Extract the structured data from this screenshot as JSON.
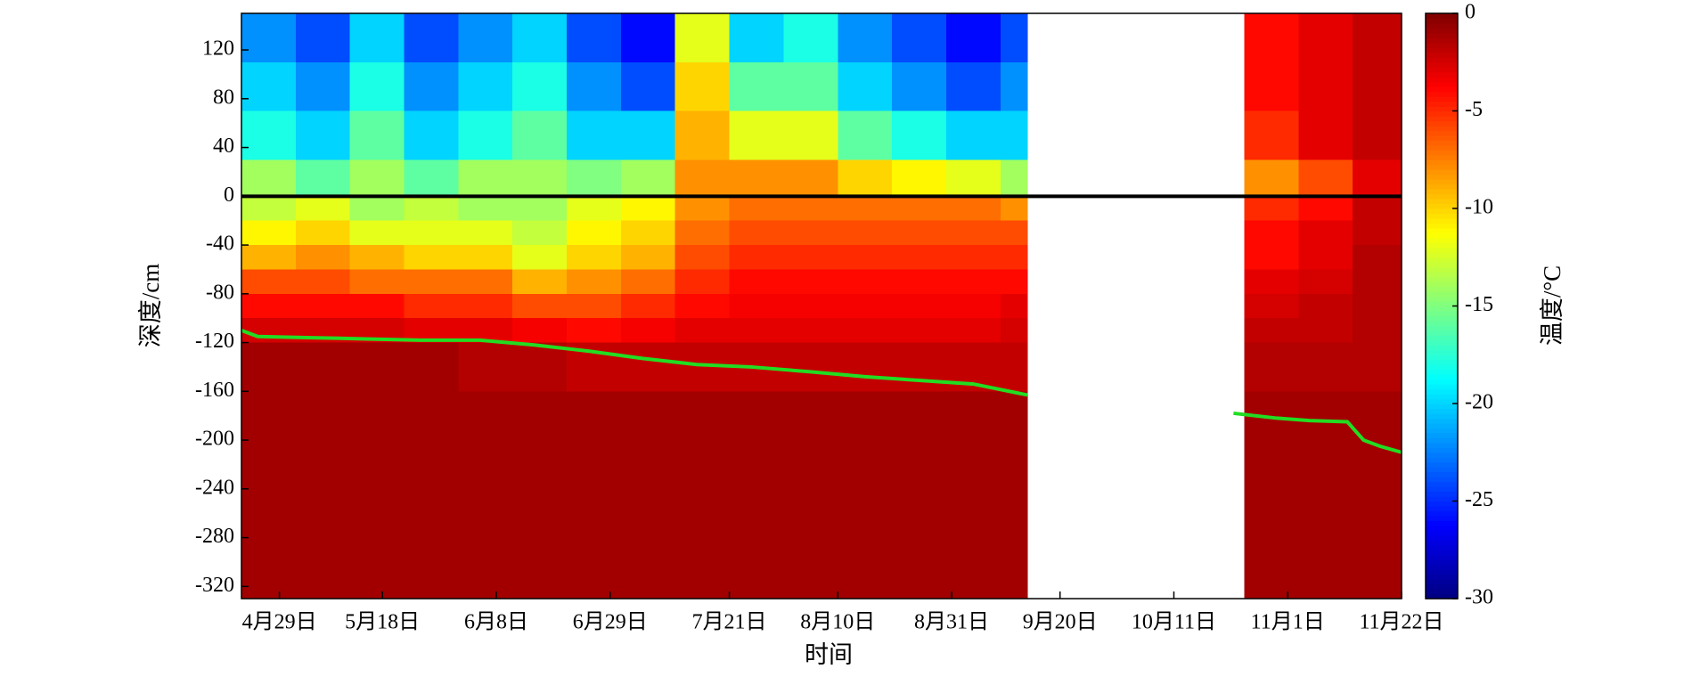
{
  "chart_data": {
    "type": "heatmap",
    "x_label": "时间",
    "y_label": "深度/cm",
    "xlim": [
      "04-22",
      "11-22"
    ],
    "xticks": [
      {
        "value": "04-29",
        "label": "4月29日"
      },
      {
        "value": "05-18",
        "label": "5月18日"
      },
      {
        "value": "06-08",
        "label": "6月8日"
      },
      {
        "value": "06-29",
        "label": "6月29日"
      },
      {
        "value": "07-21",
        "label": "7月21日"
      },
      {
        "value": "08-10",
        "label": "8月10日"
      },
      {
        "value": "08-31",
        "label": "8月31日"
      },
      {
        "value": "09-20",
        "label": "9月20日"
      },
      {
        "value": "10-11",
        "label": "10月11日"
      },
      {
        "value": "11-01",
        "label": "11月1日"
      },
      {
        "value": "11-22",
        "label": "11月22日"
      }
    ],
    "ylim": [
      -330,
      150
    ],
    "yticks": [
      120,
      80,
      40,
      0,
      -40,
      -80,
      -120,
      -160,
      -200,
      -240,
      -280,
      -320
    ],
    "x": [
      "04-22",
      "05-02",
      "05-12",
      "05-22",
      "06-01",
      "06-11",
      "06-21",
      "07-01",
      "07-11",
      "07-21",
      "07-31",
      "08-10",
      "08-20",
      "08-30",
      "09-09",
      "09-14",
      "10-24",
      "11-03",
      "11-13"
    ],
    "y": [
      150,
      110,
      70,
      30,
      0,
      -20,
      -40,
      -60,
      -80,
      -100,
      -120,
      -160,
      -200,
      -330
    ],
    "values": [
      [
        -22,
        -24,
        -20,
        -24,
        -22,
        -20,
        -24,
        -26,
        -12,
        -20,
        -18,
        -22,
        -24,
        -26,
        -24,
        null,
        -4,
        -3,
        -2
      ],
      [
        -20,
        -22,
        -18,
        -22,
        -20,
        -18,
        -22,
        -24,
        -10,
        -16,
        -16,
        -20,
        -22,
        -24,
        -22,
        null,
        -4,
        -3,
        -2
      ],
      [
        -18,
        -20,
        -16,
        -20,
        -18,
        -16,
        -20,
        -20,
        -9,
        -12,
        -12,
        -16,
        -18,
        -20,
        -20,
        null,
        -5,
        -3,
        -2
      ],
      [
        -14,
        -16,
        -14,
        -16,
        -14,
        -14,
        -15,
        -14,
        -8,
        -8,
        -8,
        -10,
        -11,
        -12,
        -14,
        null,
        -8,
        -6,
        -3
      ],
      [
        -13,
        -12,
        -14,
        -13,
        -14,
        -14,
        -12,
        -11,
        -8,
        -7,
        -7,
        -7,
        -7,
        -7,
        -8,
        null,
        -5,
        -4,
        -2
      ],
      [
        -11,
        -10,
        -12,
        -12,
        -12,
        -13,
        -11,
        -10,
        -7,
        -6,
        -6,
        -6,
        -6,
        -6,
        -6,
        null,
        -4,
        -3,
        -2
      ],
      [
        -9,
        -8,
        -9,
        -10,
        -10,
        -12,
        -10,
        -9,
        -6,
        -5,
        -5,
        -5,
        -5,
        -5,
        -5,
        null,
        -4,
        -3,
        -1.5
      ],
      [
        -6,
        -6,
        -7,
        -7,
        -7,
        -9,
        -8,
        -7,
        -5,
        -4,
        -4,
        -4,
        -4,
        -4,
        -4,
        null,
        -3,
        -2.5,
        -1.5
      ],
      [
        -4,
        -4,
        -4,
        -5,
        -5,
        -6,
        -6,
        -5,
        -4,
        -3.5,
        -3.5,
        -3.5,
        -3.5,
        -3.5,
        -3,
        null,
        -2.5,
        -2,
        -1.5
      ],
      [
        -2.5,
        -2.5,
        -2.5,
        -3,
        -3,
        -3.5,
        -4,
        -3.5,
        -3,
        -3,
        -3,
        -3,
        -3,
        -3,
        -2.5,
        null,
        -2,
        -2,
        -1.5
      ],
      [
        -1,
        -1,
        -1,
        -1,
        -1.5,
        -1.5,
        -2,
        -2,
        -2,
        -2,
        -2,
        -2,
        -2,
        -2,
        -2,
        null,
        -1.5,
        -1.5,
        -1.5
      ],
      [
        -1,
        -1,
        -1,
        -1,
        -1,
        -1,
        -1,
        -1,
        -1,
        -1,
        -1,
        -1,
        -1,
        -1,
        -1,
        null,
        -1,
        -1,
        -1
      ],
      [
        -1,
        -1,
        -1,
        -1,
        -1,
        -1,
        -1,
        -1,
        -1,
        -1,
        -1,
        -1,
        -1,
        -1,
        -1,
        null,
        -1,
        -1,
        -1
      ]
    ],
    "colorbar": {
      "label": "温度/°C",
      "lim": [
        -30,
        0
      ],
      "ticks": [
        0,
        -5,
        -10,
        -15,
        -20,
        -25,
        -30
      ]
    },
    "front": {
      "color": "#22dd22",
      "x": [
        "04-22",
        "04-25",
        "05-05",
        "05-15",
        "05-25",
        "06-05",
        "06-15",
        "06-25",
        "07-05",
        "07-15",
        "07-25",
        "08-05",
        "08-15",
        "08-25",
        "09-04",
        "09-14",
        "09-20",
        "10-22",
        "10-30",
        "11-05",
        "11-12",
        "11-15",
        "11-18",
        "11-22"
      ],
      "y": [
        -110,
        -115,
        -116,
        -117,
        -118,
        -118,
        -122,
        -127,
        -133,
        -138,
        -140,
        -144,
        -148,
        -151,
        -154,
        -163,
        null,
        -178,
        -182,
        -184,
        -185,
        -200,
        -205,
        -210
      ]
    }
  }
}
